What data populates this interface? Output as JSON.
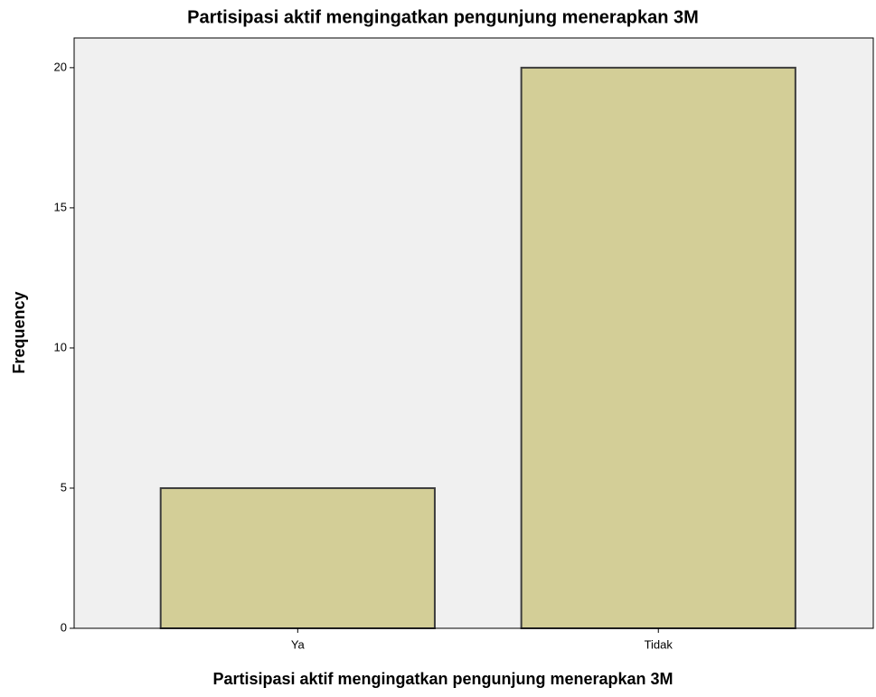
{
  "chart_data": {
    "type": "bar",
    "title": "Partisipasi aktif mengingatkan pengunjung menerapkan 3M",
    "x_label": "Partisipasi aktif mengingatkan pengunjung menerapkan 3M",
    "y_label": "Frequency",
    "categories": [
      "Ya",
      "Tidak"
    ],
    "values": [
      5,
      20
    ],
    "color": "#d3ce97",
    "ylim": [
      0,
      21.06
    ],
    "yticks": [
      0,
      5,
      10,
      15,
      20
    ],
    "grid": false
  }
}
